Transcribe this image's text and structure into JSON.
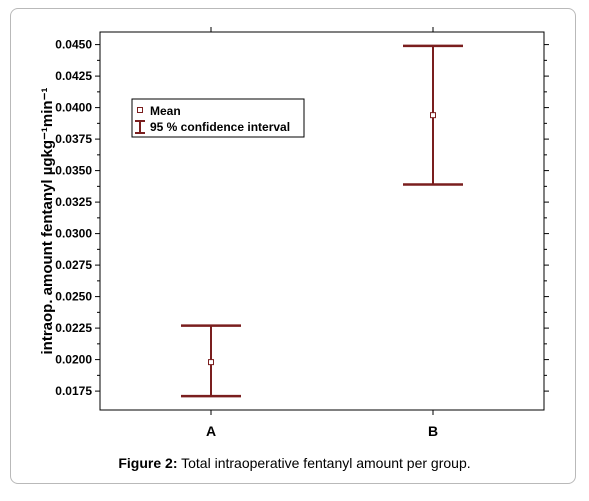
{
  "chart_data": {
    "type": "errorbar",
    "categories": [
      "A",
      "B"
    ],
    "series": [
      {
        "mean": [
          0.0198,
          0.0394
        ],
        "ci_lower": [
          0.0171,
          0.0339
        ],
        "ci_upper": [
          0.0227,
          0.0449
        ]
      }
    ],
    "ylabel": "intraop. amount fentanyl µgkg⁻¹min⁻¹",
    "ylim": [
      0.016,
      0.046
    ],
    "yticks": [
      "0.0175",
      "0.0200",
      "0.0225",
      "0.0250",
      "0.0275",
      "0.0300",
      "0.0325",
      "0.0350",
      "0.0375",
      "0.0400",
      "0.0425",
      "0.0450"
    ],
    "legend": {
      "placement": "top-left",
      "entries": [
        "Mean",
        "95 % confidence interval"
      ]
    },
    "grid": false,
    "color": "#7a1e1e"
  },
  "caption": {
    "label": "Figure 2:",
    "text": " Total intraoperative fentanyl amount per group."
  }
}
